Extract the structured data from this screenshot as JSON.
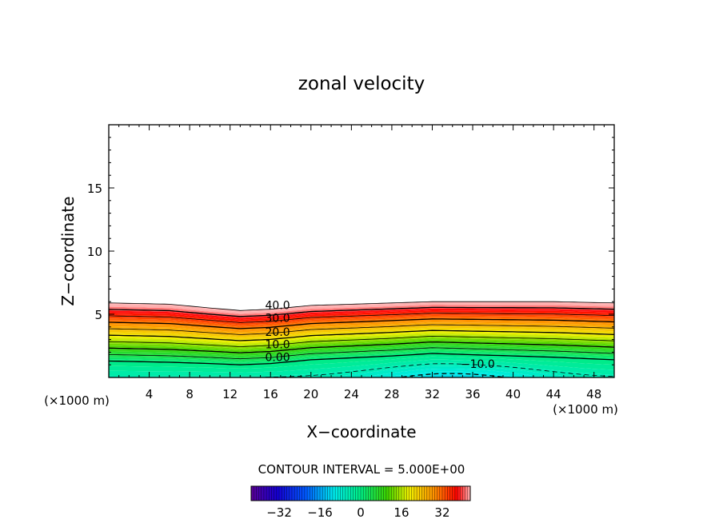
{
  "chart_data": {
    "type": "contour",
    "title": "zonal velocity",
    "xlabel": "X−coordinate",
    "ylabel": "Z−coordinate",
    "x_unit_left": "(×1000 m)",
    "x_unit_right": "(×1000 m)",
    "xlim": [
      0,
      50
    ],
    "ylim": [
      0,
      20
    ],
    "xticks": [
      "4",
      "8",
      "12",
      "16",
      "20",
      "24",
      "28",
      "32",
      "36",
      "40",
      "44",
      "48"
    ],
    "xtick_values": [
      4,
      8,
      12,
      16,
      20,
      24,
      28,
      32,
      36,
      40,
      44,
      48
    ],
    "yticks": [
      "5",
      "10",
      "15"
    ],
    "ytick_values": [
      5,
      10,
      15
    ],
    "contour_interval_text": "CONTOUR INTERVAL = 5.000E+00",
    "contour_interval": 5,
    "contour_levels": [
      -10,
      -5,
      0,
      5,
      10,
      15,
      20,
      25,
      30,
      35,
      40,
      45
    ],
    "contour_labels": [
      {
        "text": "40.0",
        "level": 40,
        "x": 16.7,
        "z": 5.4
      },
      {
        "text": "30.0",
        "level": 30,
        "x": 16.7,
        "z": 4.4
      },
      {
        "text": "20.0",
        "level": 20,
        "x": 16.7,
        "z": 3.3
      },
      {
        "text": "10.0",
        "level": 10,
        "x": 16.7,
        "z": 2.3
      },
      {
        "text": "0.00",
        "level": 0,
        "x": 16.7,
        "z": 1.3
      },
      {
        "text": "−10.0",
        "level": -10,
        "x": 36.5,
        "z": 0.75
      }
    ],
    "colorbar": {
      "ticks": [
        "−32",
        "−16",
        "0",
        "16",
        "32"
      ],
      "tick_values": [
        -32,
        -16,
        0,
        16,
        32
      ],
      "range": [
        -43,
        43
      ]
    },
    "data_profile": {
      "x": [
        0,
        6,
        10,
        13,
        16,
        20,
        28,
        32,
        36,
        44,
        50
      ],
      "top_z": [
        5.9,
        5.8,
        5.5,
        5.3,
        5.4,
        5.7,
        5.9,
        6.0,
        6.0,
        6.0,
        5.9
      ],
      "zero_wind_z": [
        1.3,
        1.2,
        1.1,
        1.0,
        1.1,
        1.4,
        1.7,
        1.9,
        1.8,
        1.6,
        1.4
      ],
      "u_surface": -5,
      "u_surface_min": -12,
      "u_top": 45
    }
  }
}
